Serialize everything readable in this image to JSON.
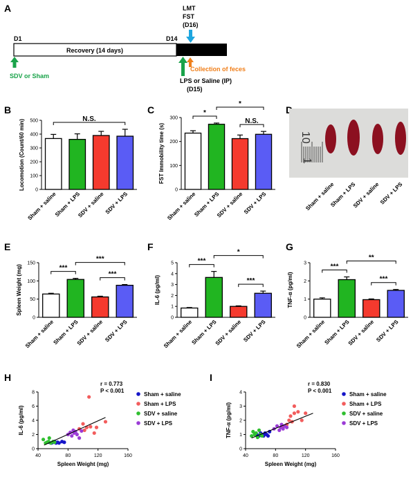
{
  "panels": {
    "A": "A",
    "B": "B",
    "C": "C",
    "D": "D",
    "E": "E",
    "F": "F",
    "G": "G",
    "H": "H",
    "I": "I"
  },
  "timeline": {
    "d1": "D1",
    "d14": "D14",
    "recovery": "Recovery (14 days)",
    "sdv_or_sham": "SDV or Sham",
    "lmt_fst": [
      "LMT",
      "FST",
      "(D16)"
    ],
    "collection": "Collection of feces",
    "lps_saline": [
      "LPS or Saline  (IP)",
      "(D15)"
    ],
    "colors": {
      "sdv_arrow": "#1aa34a",
      "lmt_arrow": "#1ea6df",
      "feces_arrow": "#f07f1a",
      "lps_arrow": "#1aa34a"
    }
  },
  "groups": [
    "Sham + saline",
    "Sham + LPS",
    "SDV + saline",
    "SDV + LPS"
  ],
  "group_colors": [
    "#ffffff",
    "#21b521",
    "#f53a2e",
    "#5a5cf5"
  ],
  "photo": {
    "ruler_top": "10",
    "ruler_side": "1",
    "labels": [
      "Sham + saline",
      "Sham + LPS",
      "SDV + saline",
      "SDV + LPS"
    ]
  },
  "chart_data": [
    {
      "panel": "B",
      "type": "bar",
      "ylabel": "Locomotion (Count/60 min)",
      "ylim": [
        0,
        500
      ],
      "yticks": [
        0,
        100,
        200,
        300,
        400,
        500
      ],
      "categories": [
        "Sham + saline",
        "Sham + LPS",
        "SDV + saline",
        "SDV + LPS"
      ],
      "values": [
        368,
        362,
        390,
        385
      ],
      "errors": [
        30,
        40,
        30,
        50
      ],
      "annotations": [
        {
          "groups": [
            0,
            3
          ],
          "label": "N.S."
        }
      ]
    },
    {
      "panel": "C",
      "type": "bar",
      "ylabel": "FST Immobility time (s)",
      "ylim": [
        0,
        300
      ],
      "yticks": [
        0,
        100,
        200,
        300
      ],
      "categories": [
        "Sham + saline",
        "Sham + LPS",
        "SDV + saline",
        "SDV + LPS"
      ],
      "values": [
        235,
        272,
        212,
        230
      ],
      "errors": [
        10,
        5,
        15,
        12
      ],
      "annotations": [
        {
          "groups": [
            0,
            1
          ],
          "label": "*"
        },
        {
          "groups": [
            1,
            3
          ],
          "label": "*"
        },
        {
          "groups": [
            2,
            3
          ],
          "label": "N.S."
        }
      ]
    },
    {
      "panel": "E",
      "type": "bar",
      "ylabel": "Spleen Weight (mg)",
      "ylim": [
        0,
        150
      ],
      "yticks": [
        0,
        50,
        100,
        150
      ],
      "categories": [
        "Sham + saline",
        "Sham + LPS",
        "SDV + saline",
        "SDV + LPS"
      ],
      "values": [
        64,
        104,
        56,
        88
      ],
      "errors": [
        2,
        3,
        2,
        2
      ],
      "annotations": [
        {
          "groups": [
            0,
            1
          ],
          "label": "***"
        },
        {
          "groups": [
            1,
            3
          ],
          "label": "***"
        },
        {
          "groups": [
            2,
            3
          ],
          "label": "***"
        }
      ]
    },
    {
      "panel": "F",
      "type": "bar",
      "ylabel": "IL-6 (pg/ml)",
      "ylim": [
        0,
        5
      ],
      "yticks": [
        0,
        1,
        2,
        3,
        4,
        5
      ],
      "categories": [
        "Sham + saline",
        "Sham + LPS",
        "SDV + saline",
        "SDV + LPS"
      ],
      "values": [
        0.85,
        3.65,
        1.0,
        2.2
      ],
      "errors": [
        0.05,
        0.55,
        0.05,
        0.2
      ],
      "annotations": [
        {
          "groups": [
            0,
            1
          ],
          "label": "***"
        },
        {
          "groups": [
            1,
            3
          ],
          "label": "*"
        },
        {
          "groups": [
            2,
            3
          ],
          "label": "***"
        }
      ]
    },
    {
      "panel": "G",
      "type": "bar",
      "ylabel": "TNF-α  (pg/ml)",
      "ylim": [
        0,
        3
      ],
      "yticks": [
        0,
        1,
        2,
        3
      ],
      "categories": [
        "Sham + saline",
        "Sham + LPS",
        "SDV + saline",
        "SDV + LPS"
      ],
      "values": [
        1.0,
        2.07,
        0.97,
        1.48
      ],
      "errors": [
        0.07,
        0.15,
        0.04,
        0.05
      ],
      "annotations": [
        {
          "groups": [
            0,
            1
          ],
          "label": "***"
        },
        {
          "groups": [
            1,
            3
          ],
          "label": "**"
        },
        {
          "groups": [
            2,
            3
          ],
          "label": "***"
        }
      ]
    },
    {
      "panel": "H",
      "type": "scatter",
      "xlabel": "Spleen Weight (mg)",
      "ylabel": "IL-6 (pg/ml)",
      "xlim": [
        40,
        160
      ],
      "ylim": [
        0,
        8
      ],
      "xticks": [
        40,
        80,
        120,
        160
      ],
      "yticks": [
        0,
        2,
        4,
        6,
        8
      ],
      "stats": [
        "r = 0.773",
        "P < 0.001"
      ],
      "fit": [
        [
          48,
          0.5
        ],
        [
          130,
          4.4
        ]
      ],
      "series": [
        {
          "name": "Sham + saline",
          "color": "#1515c8",
          "points": [
            [
              55,
              0.9
            ],
            [
              58,
              0.8
            ],
            [
              60,
              0.9
            ],
            [
              62,
              1.0
            ],
            [
              64,
              0.8
            ],
            [
              66,
              0.9
            ],
            [
              68,
              0.8
            ],
            [
              72,
              1.0
            ],
            [
              75,
              0.9
            ]
          ]
        },
        {
          "name": "Sham + LPS",
          "color": "#f25d5d",
          "points": [
            [
              95,
              2.8
            ],
            [
              100,
              3.5
            ],
            [
              102,
              2.6
            ],
            [
              105,
              3.0
            ],
            [
              108,
              7.3
            ],
            [
              110,
              3.1
            ],
            [
              115,
              2.2
            ],
            [
              118,
              3.0
            ],
            [
              130,
              3.8
            ]
          ]
        },
        {
          "name": "SDV + saline",
          "color": "#2fbf2f",
          "points": [
            [
              47,
              1.3
            ],
            [
              50,
              0.8
            ],
            [
              52,
              0.9
            ],
            [
              54,
              1.0
            ],
            [
              55,
              1.5
            ],
            [
              57,
              0.8
            ],
            [
              60,
              1.0
            ],
            [
              62,
              0.9
            ]
          ]
        },
        {
          "name": "SDV + LPS",
          "color": "#9b3bd6",
          "points": [
            [
              80,
              2.0
            ],
            [
              83,
              2.3
            ],
            [
              85,
              1.8
            ],
            [
              87,
              2.6
            ],
            [
              88,
              2.2
            ],
            [
              90,
              2.4
            ],
            [
              92,
              2.0
            ],
            [
              95,
              1.5
            ],
            [
              98,
              2.5
            ]
          ]
        }
      ]
    },
    {
      "panel": "I",
      "type": "scatter",
      "xlabel": "Spleen Weight (mg)",
      "ylabel": "TNF-α (pg/ml)",
      "xlim": [
        40,
        160
      ],
      "ylim": [
        0,
        4
      ],
      "xticks": [
        40,
        80,
        120,
        160
      ],
      "yticks": [
        0,
        1,
        2,
        3,
        4
      ],
      "stats": [
        "r = 0.830",
        "P < 0.001"
      ],
      "fit": [
        [
          48,
          0.75
        ],
        [
          130,
          2.5
        ]
      ],
      "series": [
        {
          "name": "Sham + saline",
          "color": "#1515c8",
          "points": [
            [
              55,
              1.0
            ],
            [
              58,
              0.9
            ],
            [
              60,
              1.1
            ],
            [
              62,
              1.0
            ],
            [
              64,
              0.9
            ],
            [
              66,
              1.1
            ],
            [
              68,
              1.0
            ],
            [
              70,
              0.9
            ],
            [
              72,
              1.2
            ]
          ]
        },
        {
          "name": "Sham + LPS",
          "color": "#f25d5d",
          "points": [
            [
              90,
              1.5
            ],
            [
              95,
              1.7
            ],
            [
              98,
              2.0
            ],
            [
              100,
              2.3
            ],
            [
              102,
              1.9
            ],
            [
              105,
              2.5
            ],
            [
              105,
              3.0
            ],
            [
              110,
              2.6
            ],
            [
              115,
              2.0
            ],
            [
              120,
              2.5
            ]
          ]
        },
        {
          "name": "SDV + saline",
          "color": "#2fbf2f",
          "points": [
            [
              48,
              0.9
            ],
            [
              50,
              1.2
            ],
            [
              52,
              1.0
            ],
            [
              54,
              1.1
            ],
            [
              56,
              0.8
            ],
            [
              58,
              1.3
            ],
            [
              60,
              1.0
            ],
            [
              62,
              0.9
            ]
          ]
        },
        {
          "name": "SDV + LPS",
          "color": "#9b3bd6",
          "points": [
            [
              78,
              1.4
            ],
            [
              82,
              1.6
            ],
            [
              85,
              1.3
            ],
            [
              87,
              1.5
            ],
            [
              88,
              1.7
            ],
            [
              90,
              1.4
            ],
            [
              92,
              1.6
            ],
            [
              95,
              1.5
            ]
          ]
        }
      ]
    }
  ]
}
